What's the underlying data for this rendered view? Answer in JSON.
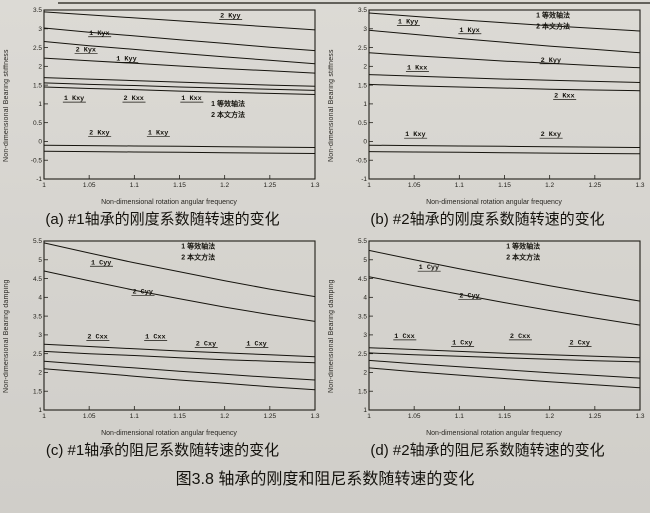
{
  "figure": {
    "sub_captions": {
      "a": "(a) #1轴承的刚度系数随转速的变化",
      "b": "(b) #2轴承的刚度系数随转速的变化",
      "c": "(c) #1轴承的阻尼系数随转速的变化",
      "d": "(d) #2轴承的阻尼系数随转速的变化"
    },
    "main_caption": "图3.8 轴承的刚度和阻尼系数随转速的变化"
  },
  "chart_data": [
    {
      "id": "a",
      "type": "line",
      "xlabel": "Non-dimensional rotation angular frequency",
      "ylabel": "Non-dimensional Bearing stiffness",
      "xlim": [
        1,
        1.3
      ],
      "ylim": [
        -1,
        3.5
      ],
      "x": [
        1,
        1.05,
        1.1,
        1.15,
        1.2,
        1.25,
        1.3
      ],
      "xticks": [
        1,
        1.05,
        1.1,
        1.15,
        1.2,
        1.25,
        1.3
      ],
      "yticks": [
        3.5,
        3,
        2.5,
        2,
        1.5,
        1,
        0.5,
        0,
        -0.5,
        -1
      ],
      "legend": {
        "x": 1.185,
        "y": 0.95,
        "items": [
          "1 等效轴法",
          "2 本文方法"
        ]
      },
      "series": [
        {
          "name": "2 Kyy",
          "values": [
            3.45,
            3.37,
            3.29,
            3.21,
            3.13,
            3.05,
            2.97
          ]
        },
        {
          "name": "1 Kyx",
          "values": [
            3.02,
            2.91,
            2.81,
            2.71,
            2.61,
            2.51,
            2.42
          ]
        },
        {
          "name": "2 Kyx",
          "values": [
            2.66,
            2.55,
            2.45,
            2.35,
            2.25,
            2.16,
            2.07
          ]
        },
        {
          "name": "1 Kyy",
          "values": [
            2.22,
            2.15,
            2.08,
            2.01,
            1.94,
            1.88,
            1.82
          ]
        },
        {
          "name": "1 Kxy",
          "values": [
            1.7,
            1.66,
            1.62,
            1.58,
            1.54,
            1.5,
            1.47
          ]
        },
        {
          "name": "2 Kxx",
          "values": [
            1.56,
            1.52,
            1.49,
            1.45,
            1.42,
            1.39,
            1.36
          ]
        },
        {
          "name": "1 Kxx",
          "values": [
            1.45,
            1.41,
            1.38,
            1.34,
            1.31,
            1.28,
            1.25
          ]
        },
        {
          "name": "2 Kxy",
          "values": [
            -0.1,
            -0.11,
            -0.12,
            -0.13,
            -0.14,
            -0.15,
            -0.16
          ]
        },
        {
          "name": "1 Kxy",
          "values": [
            -0.26,
            -0.27,
            -0.28,
            -0.29,
            -0.3,
            -0.31,
            -0.32
          ]
        }
      ],
      "annotations": [
        {
          "label": "2 Kyy",
          "x": 1.195,
          "y": 3.3
        },
        {
          "label": "1 Kyx",
          "x": 1.05,
          "y": 2.84
        },
        {
          "label": "2 Kyx",
          "x": 1.035,
          "y": 2.4
        },
        {
          "label": "1 Kyy",
          "x": 1.08,
          "y": 2.16
        },
        {
          "label": "1 Kxy",
          "x": 1.022,
          "y": 1.1
        },
        {
          "label": "2 Kxx",
          "x": 1.088,
          "y": 1.1
        },
        {
          "label": "1 Kxx",
          "x": 1.152,
          "y": 1.1
        },
        {
          "label": "2 Kxy",
          "x": 1.05,
          "y": 0.18
        },
        {
          "label": "1 Kxy",
          "x": 1.115,
          "y": 0.18
        }
      ]
    },
    {
      "id": "b",
      "type": "line",
      "xlabel": "Non-dimensional rotation angular frequency",
      "ylabel": "Non-dimensional Bearing stiffness",
      "xlim": [
        1,
        1.3
      ],
      "ylim": [
        -1,
        3.5
      ],
      "x": [
        1,
        1.05,
        1.1,
        1.15,
        1.2,
        1.25,
        1.3
      ],
      "xticks": [
        1,
        1.05,
        1.1,
        1.15,
        1.2,
        1.25,
        1.3
      ],
      "yticks": [
        3.5,
        3,
        2.5,
        2,
        1.5,
        1,
        0.5,
        0,
        -0.5,
        -1
      ],
      "legend": {
        "x": 1.185,
        "y": 3.3,
        "items": [
          "1 等效轴法",
          "2 本文方法"
        ]
      },
      "series": [
        {
          "name": "1 Kyy",
          "values": [
            3.42,
            3.33,
            3.24,
            3.16,
            3.08,
            3.01,
            2.94
          ]
        },
        {
          "name": "1 Kyx",
          "values": [
            2.96,
            2.85,
            2.74,
            2.64,
            2.54,
            2.45,
            2.36
          ]
        },
        {
          "name": "2 Kyy",
          "values": [
            2.36,
            2.28,
            2.21,
            2.14,
            2.08,
            2.02,
            1.96
          ]
        },
        {
          "name": "1 Kxx",
          "values": [
            1.78,
            1.74,
            1.7,
            1.66,
            1.63,
            1.6,
            1.57
          ]
        },
        {
          "name": "2 Kxx",
          "values": [
            1.52,
            1.48,
            1.45,
            1.42,
            1.39,
            1.37,
            1.35
          ]
        },
        {
          "name": "1 Kxy",
          "values": [
            -0.1,
            -0.11,
            -0.12,
            -0.13,
            -0.14,
            -0.15,
            -0.16
          ]
        },
        {
          "name": "2 Kxy",
          "values": [
            -0.27,
            -0.28,
            -0.29,
            -0.3,
            -0.31,
            -0.32,
            -0.33
          ]
        }
      ],
      "annotations": [
        {
          "label": "1 Kyy",
          "x": 1.032,
          "y": 3.14
        },
        {
          "label": "1 Kyx",
          "x": 1.1,
          "y": 2.92
        },
        {
          "label": "1 Kxx",
          "x": 1.042,
          "y": 1.92
        },
        {
          "label": "2 Kyy",
          "x": 1.19,
          "y": 2.12
        },
        {
          "label": "2 Kxx",
          "x": 1.205,
          "y": 1.17
        },
        {
          "label": "1 Kxy",
          "x": 1.04,
          "y": 0.14
        },
        {
          "label": "2 Kxy",
          "x": 1.19,
          "y": 0.14
        }
      ]
    },
    {
      "id": "c",
      "type": "line",
      "xlabel": "Non-dimensional rotation angular frequency",
      "ylabel": "Non-dimensional Bearing damping",
      "xlim": [
        1,
        1.3
      ],
      "ylim": [
        1,
        5.5
      ],
      "x": [
        1,
        1.05,
        1.1,
        1.15,
        1.2,
        1.25,
        1.3
      ],
      "xticks": [
        1,
        1.05,
        1.1,
        1.15,
        1.2,
        1.25,
        1.3
      ],
      "yticks": [
        5.5,
        5,
        4.5,
        4,
        3.5,
        3,
        2.5,
        2,
        1.5,
        1
      ],
      "legend": {
        "x": 1.152,
        "y": 5.3,
        "items": [
          "1 等效轴法",
          "2 本文方法"
        ]
      },
      "series": [
        {
          "name": "1 Cyy",
          "values": [
            5.45,
            5.18,
            4.92,
            4.68,
            4.44,
            4.22,
            4.02
          ]
        },
        {
          "name": "2 Cyy",
          "values": [
            4.7,
            4.44,
            4.19,
            3.96,
            3.74,
            3.54,
            3.36
          ]
        },
        {
          "name": "2 Cxx",
          "values": [
            2.75,
            2.69,
            2.63,
            2.57,
            2.52,
            2.47,
            2.42
          ]
        },
        {
          "name": "1 Cxx",
          "values": [
            2.56,
            2.5,
            2.45,
            2.39,
            2.34,
            2.3,
            2.26
          ]
        },
        {
          "name": "2 Cxy",
          "values": [
            2.3,
            2.21,
            2.12,
            2.03,
            1.95,
            1.87,
            1.8
          ]
        },
        {
          "name": "1 Cxy",
          "values": [
            2.1,
            2.0,
            1.9,
            1.8,
            1.71,
            1.62,
            1.54
          ]
        }
      ],
      "annotations": [
        {
          "label": "1 Cyy",
          "x": 1.052,
          "y": 4.88
        },
        {
          "label": "2 Cyy",
          "x": 1.098,
          "y": 4.1
        },
        {
          "label": "2 Cxx",
          "x": 1.048,
          "y": 2.9
        },
        {
          "label": "1 Cxx",
          "x": 1.112,
          "y": 2.9
        },
        {
          "label": "2 Cxy",
          "x": 1.168,
          "y": 2.72
        },
        {
          "label": "1 Cxy",
          "x": 1.224,
          "y": 2.72
        }
      ]
    },
    {
      "id": "d",
      "type": "line",
      "xlabel": "Non-dimensional rotation angular frequency",
      "ylabel": "Non-dimensional Bearing damping",
      "xlim": [
        1,
        1.3
      ],
      "ylim": [
        1,
        5.5
      ],
      "x": [
        1,
        1.05,
        1.1,
        1.15,
        1.2,
        1.25,
        1.3
      ],
      "xticks": [
        1,
        1.05,
        1.1,
        1.15,
        1.2,
        1.25,
        1.3
      ],
      "yticks": [
        5.5,
        5,
        4.5,
        4,
        3.5,
        3,
        2.5,
        2,
        1.5,
        1
      ],
      "legend": {
        "x": 1.152,
        "y": 5.3,
        "items": [
          "1 等效轴法",
          "2 本文方法"
        ]
      },
      "series": [
        {
          "name": "1 Cyy",
          "values": [
            5.25,
            5.0,
            4.76,
            4.53,
            4.31,
            4.1,
            3.9
          ]
        },
        {
          "name": "2 Cyy",
          "values": [
            4.55,
            4.31,
            4.08,
            3.86,
            3.65,
            3.45,
            3.26
          ]
        },
        {
          "name": "1 Cxx",
          "values": [
            2.66,
            2.61,
            2.56,
            2.51,
            2.47,
            2.43,
            2.39
          ]
        },
        {
          "name": "2 Cxx",
          "values": [
            2.52,
            2.47,
            2.43,
            2.39,
            2.35,
            2.31,
            2.28
          ]
        },
        {
          "name": "1 Cxy",
          "values": [
            2.32,
            2.23,
            2.15,
            2.07,
            1.99,
            1.92,
            1.85
          ]
        },
        {
          "name": "2 Cxy",
          "values": [
            2.12,
            2.02,
            1.93,
            1.84,
            1.75,
            1.67,
            1.59
          ]
        }
      ],
      "annotations": [
        {
          "label": "1 Cyy",
          "x": 1.055,
          "y": 4.75
        },
        {
          "label": "2 Cyy",
          "x": 1.1,
          "y": 4.0
        },
        {
          "label": "1 Cxx",
          "x": 1.028,
          "y": 2.92
        },
        {
          "label": "1 Cxy",
          "x": 1.092,
          "y": 2.74
        },
        {
          "label": "2 Cxx",
          "x": 1.156,
          "y": 2.92
        },
        {
          "label": "2 Cxy",
          "x": 1.222,
          "y": 2.74
        }
      ]
    }
  ]
}
